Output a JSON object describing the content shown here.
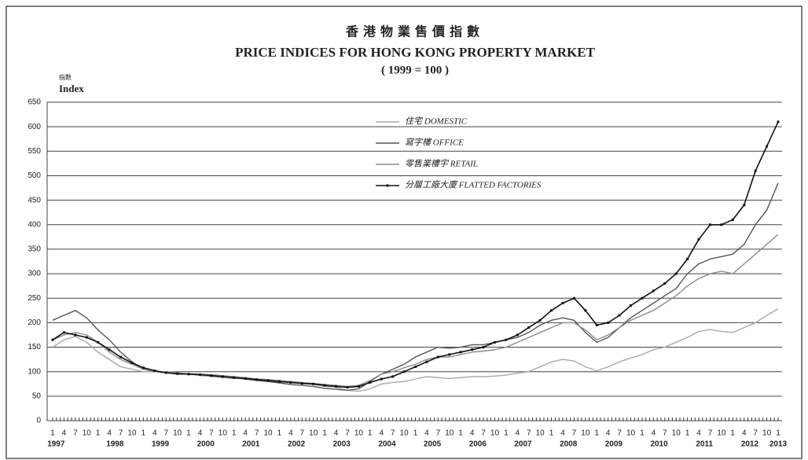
{
  "chart_data": {
    "type": "line",
    "title_zh": "香港物業售價指數",
    "title": "PRICE INDICES FOR HONG KONG PROPERTY MARKET",
    "subtitle": "( 1999 = 100 )",
    "ylabel_zh": "指數",
    "ylabel": "Index",
    "categories": [
      "1",
      "4",
      "7",
      "10",
      "1",
      "4",
      "7",
      "10",
      "1",
      "4",
      "7",
      "10",
      "1",
      "4",
      "7",
      "10",
      "1",
      "4",
      "7",
      "10",
      "1",
      "4",
      "7",
      "10",
      "1",
      "4",
      "7",
      "10",
      "1",
      "4",
      "7",
      "10",
      "1",
      "4",
      "7",
      "10",
      "1",
      "4",
      "7",
      "10",
      "1",
      "4",
      "7",
      "10",
      "1",
      "4",
      "7",
      "10",
      "1",
      "4",
      "7",
      "10",
      "1",
      "4",
      "7",
      "10",
      "1",
      "4",
      "7",
      "10",
      "1",
      "4",
      "7",
      "10",
      "1"
    ],
    "years": [
      "1997",
      "1998",
      "1999",
      "2000",
      "2001",
      "2002",
      "2003",
      "2004",
      "2005",
      "2006",
      "2007",
      "2008",
      "2009",
      "2010",
      "2011",
      "2012",
      "2013"
    ],
    "ylim": [
      0,
      650
    ],
    "yticks": [
      0,
      50,
      100,
      150,
      200,
      250,
      300,
      350,
      400,
      450,
      500,
      550,
      600,
      650
    ],
    "grid": true,
    "series": [
      {
        "name": "住宅 DOMESTIC",
        "color": "#a8a8a8",
        "values": [
          150,
          165,
          172,
          160,
          140,
          125,
          110,
          105,
          100,
          100,
          100,
          98,
          95,
          92,
          90,
          88,
          86,
          86,
          84,
          82,
          80,
          78,
          76,
          74,
          70,
          68,
          62,
          60,
          65,
          75,
          78,
          80,
          85,
          90,
          88,
          86,
          88,
          90,
          90,
          91,
          93,
          97,
          100,
          110,
          120,
          125,
          122,
          110,
          102,
          110,
          120,
          128,
          135,
          145,
          150,
          160,
          170,
          182,
          186,
          182,
          180,
          190,
          200,
          215,
          228
        ]
      },
      {
        "name": "寫字樓 OFFICE",
        "color": "#555555",
        "values": [
          205,
          215,
          225,
          210,
          185,
          165,
          140,
          120,
          105,
          100,
          98,
          95,
          95,
          95,
          92,
          90,
          88,
          85,
          82,
          80,
          77,
          74,
          72,
          70,
          66,
          64,
          62,
          65,
          80,
          95,
          105,
          115,
          130,
          140,
          150,
          148,
          150,
          155,
          155,
          160,
          165,
          170,
          180,
          195,
          205,
          210,
          205,
          180,
          160,
          170,
          190,
          210,
          225,
          240,
          255,
          270,
          300,
          320,
          330,
          335,
          340,
          360,
          400,
          430,
          485
        ]
      },
      {
        "name": "零售業樓宇 RETAIL",
        "color": "#8c8c8c",
        "values": [
          165,
          175,
          180,
          175,
          160,
          140,
          125,
          115,
          105,
          100,
          98,
          97,
          96,
          95,
          94,
          92,
          90,
          88,
          85,
          84,
          82,
          80,
          78,
          76,
          74,
          72,
          70,
          72,
          82,
          95,
          100,
          108,
          115,
          125,
          130,
          130,
          135,
          140,
          142,
          145,
          150,
          160,
          170,
          180,
          190,
          200,
          200,
          185,
          165,
          175,
          190,
          205,
          215,
          225,
          240,
          255,
          275,
          290,
          300,
          305,
          300,
          320,
          340,
          360,
          380
        ]
      },
      {
        "name": "分層工廠大廈 FLATTED FACTORIES",
        "color": "#111111",
        "markers": true,
        "values": [
          165,
          180,
          175,
          170,
          160,
          145,
          130,
          118,
          108,
          102,
          98,
          96,
          95,
          94,
          92,
          90,
          88,
          86,
          84,
          82,
          80,
          78,
          76,
          75,
          72,
          70,
          68,
          70,
          78,
          85,
          90,
          100,
          110,
          120,
          130,
          135,
          140,
          145,
          150,
          160,
          165,
          175,
          190,
          205,
          225,
          240,
          250,
          225,
          195,
          200,
          215,
          235,
          250,
          265,
          280,
          300,
          330,
          370,
          400,
          400,
          410,
          440,
          510,
          560,
          610
        ]
      }
    ]
  }
}
